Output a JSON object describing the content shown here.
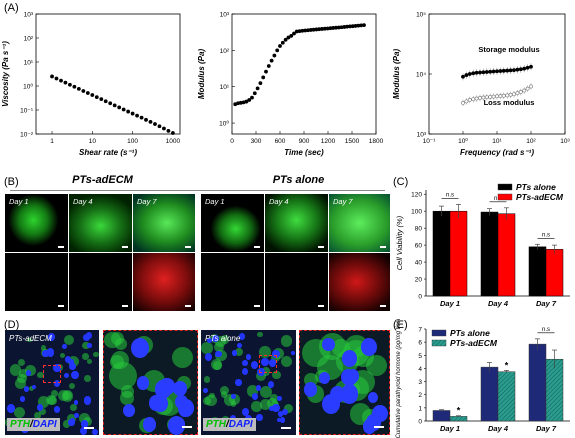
{
  "panel_labels": {
    "A": "(A)",
    "B": "(B)",
    "C": "(C)",
    "D": "(D)",
    "E": "(E)"
  },
  "chart_data": [
    {
      "id": "viscosity",
      "type": "scatter",
      "xlabel": "Shear rate (s⁻¹)",
      "ylabel": "Viscosity (Pa s⁻¹)",
      "xscale": "log",
      "yscale": "log",
      "xlim": [
        0.4,
        1500
      ],
      "ylim": [
        0.01,
        1000
      ],
      "xticks": [
        "1",
        "10",
        "100",
        "1000"
      ],
      "yticks": [
        "10⁻²",
        "10⁻¹",
        "10⁰",
        "10¹",
        "10²",
        "10³"
      ],
      "series": [
        {
          "x": [
            1.0,
            1.29,
            1.67,
            2.15,
            2.78,
            3.59,
            4.64,
            5.99,
            7.74,
            10,
            12.9,
            16.7,
            21.5,
            27.8,
            35.9,
            46.4,
            59.9,
            77.4,
            100,
            129,
            167,
            215,
            278,
            359,
            464,
            599,
            774,
            1000
          ],
          "y": [
            2.5,
            2.05,
            1.68,
            1.38,
            1.13,
            0.93,
            0.76,
            0.62,
            0.51,
            0.42,
            0.345,
            0.283,
            0.232,
            0.19,
            0.156,
            0.128,
            0.105,
            0.086,
            0.071,
            0.058,
            0.048,
            0.039,
            0.032,
            0.026,
            0.021,
            0.017,
            0.0135,
            0.011
          ]
        }
      ]
    },
    {
      "id": "modulus_time",
      "type": "scatter",
      "xlabel": "Time (sec)",
      "ylabel": "Modulus (Pa)",
      "xscale": "linear",
      "yscale": "log",
      "xlim": [
        0,
        1800
      ],
      "ylim": [
        0.5,
        1000
      ],
      "xticks": [
        "0",
        "300",
        "600",
        "900",
        "1200",
        "1500",
        "1800"
      ],
      "yticks": [
        "10⁰",
        "10¹",
        "10²",
        "10³"
      ],
      "series": [
        {
          "x": [
            40,
            75,
            110,
            145,
            180,
            215,
            250,
            285,
            320,
            355,
            390,
            425,
            460,
            495,
            530,
            565,
            600,
            635,
            670,
            705,
            740,
            775,
            810,
            845,
            880,
            915,
            950,
            985,
            1020,
            1055,
            1090,
            1125,
            1160,
            1195,
            1230,
            1265,
            1300,
            1335,
            1370,
            1405,
            1440,
            1475,
            1510,
            1545,
            1580,
            1615,
            1650
          ],
          "y": [
            3.3,
            3.5,
            3.6,
            3.7,
            3.9,
            4.3,
            5.0,
            6.6,
            9.0,
            12.5,
            18,
            26,
            37,
            52,
            72,
            100,
            132,
            162,
            195,
            225,
            250,
            290,
            330,
            338,
            345,
            352,
            358,
            364,
            370,
            376,
            382,
            388,
            394,
            400,
            407,
            413,
            420,
            426,
            433,
            440,
            448,
            455,
            462,
            470,
            478,
            486,
            495
          ]
        }
      ]
    },
    {
      "id": "modulus_frequency",
      "type": "scatter",
      "xlabel": "Frequency (rad s⁻¹)",
      "ylabel": "Modulus (Pa)",
      "xscale": "log",
      "yscale": "log",
      "xlim": [
        0.1,
        1000
      ],
      "ylim": [
        1000,
        100000
      ],
      "xticks": [
        "10⁻¹",
        "10⁰",
        "10¹",
        "10²",
        "10³"
      ],
      "yticks": [
        "10³",
        "10⁴",
        "10⁵"
      ],
      "annotations": [
        "Storage modulus",
        "Loss modulus"
      ],
      "series": [
        {
          "name": "Storage modulus",
          "marker": "filled",
          "x": [
            1,
            1.26,
            1.58,
            2,
            2.51,
            3.16,
            3.98,
            5.01,
            6.31,
            7.94,
            10,
            12.6,
            15.8,
            20,
            25.1,
            31.6,
            39.8,
            50.1,
            63.1,
            79.4,
            100
          ],
          "y": [
            9000,
            9600,
            10000,
            10300,
            10500,
            10600,
            10700,
            10800,
            10900,
            11000,
            11100,
            11200,
            11300,
            11400,
            11500,
            11600,
            11800,
            12000,
            12300,
            12700,
            13200
          ]
        },
        {
          "name": "Loss modulus",
          "marker": "open",
          "x": [
            1,
            1.26,
            1.58,
            2,
            2.51,
            3.16,
            3.98,
            5.01,
            6.31,
            7.94,
            10,
            12.6,
            15.8,
            20,
            25.1,
            31.6,
            39.8,
            50.1,
            63.1,
            79.4,
            100
          ],
          "y": [
            3300,
            3500,
            3700,
            3800,
            3900,
            4000,
            4050,
            4100,
            4150,
            4200,
            4250,
            4300,
            4350,
            4400,
            4500,
            4600,
            4800,
            5000,
            5300,
            5700,
            6200
          ]
        }
      ]
    },
    {
      "id": "cell_viability",
      "type": "bar",
      "ylabel": "Cell Viability (%)",
      "ylim": [
        0,
        125
      ],
      "yticks": [
        "0",
        "20",
        "40",
        "60",
        "80",
        "100",
        "120"
      ],
      "categories": [
        "Day 1",
        "Day 4",
        "Day 7"
      ],
      "legend_position": "top-right",
      "significance": [
        "n.s",
        "n.s",
        "n.s"
      ],
      "colors": {
        "PTs alone": "#000000",
        "PTs-adECM": "#ff0000"
      },
      "series": [
        {
          "name": "PTs alone",
          "values": [
            100,
            99,
            58
          ],
          "errors": [
            6,
            4,
            3
          ]
        },
        {
          "name": "PTs-adECM",
          "values": [
            100,
            97,
            55
          ],
          "errors": [
            8,
            7,
            5
          ]
        }
      ]
    },
    {
      "id": "parathyroid_hormone",
      "type": "bar",
      "ylabel": "Cumulative parathyroid hormone (pg/mg tissue)",
      "ylim": [
        0,
        7
      ],
      "yticks": [
        "0",
        "1",
        "2",
        "3",
        "4",
        "5",
        "6",
        "7"
      ],
      "categories": [
        "Day 1",
        "Day 4",
        "Day 7"
      ],
      "legend_position": "top-left",
      "significance": [
        "*",
        "*",
        "n.s"
      ],
      "colors": {
        "PTs alone": "#1e2a78",
        "PTs-adECM": "#2a9d8f"
      },
      "series": [
        {
          "name": "PTs alone",
          "values": [
            0.8,
            4.1,
            5.85
          ],
          "errors": [
            0.06,
            0.35,
            0.4
          ]
        },
        {
          "name": "PTs-adECM",
          "values": [
            0.35,
            3.75,
            4.7
          ],
          "errors": [
            0.05,
            0.1,
            0.7
          ]
        }
      ]
    }
  ],
  "panel_b": {
    "groups": [
      "PTs-adECM",
      "PTs alone"
    ],
    "day_labels": [
      "Day 1",
      "Day 4",
      "Day 7",
      "Day 1",
      "Day 4",
      "Day 7"
    ]
  },
  "panel_d": {
    "groups": [
      "PTs-adECM",
      "PTs alone"
    ],
    "stain_labels": {
      "pth": "PTH",
      "sep": "/",
      "dapi": "DAPI"
    }
  }
}
